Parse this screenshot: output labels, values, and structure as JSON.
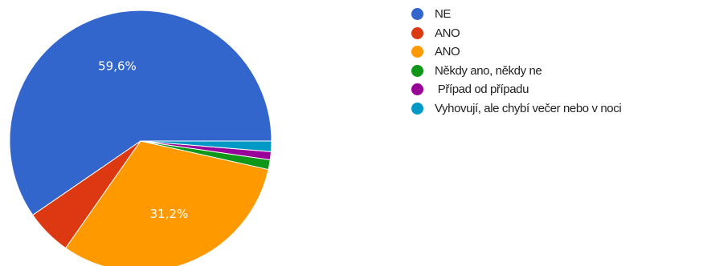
{
  "chart_data": {
    "type": "pie",
    "title": "",
    "slices": [
      {
        "label": "NE",
        "value": 59.6,
        "value_label": "59,6%",
        "color": "#3366cc"
      },
      {
        "label": "ANO",
        "value": 5.7,
        "value_label": "",
        "color": "#dc3912"
      },
      {
        "label": "ANO",
        "value": 31.2,
        "value_label": "31,2%",
        "color": "#ff9900"
      },
      {
        "label": "Někdy ano, někdy ne",
        "value": 1.2,
        "value_label": "",
        "color": "#109618"
      },
      {
        "label": " Případ od případu",
        "value": 1.0,
        "value_label": "",
        "color": "#990099"
      },
      {
        "label": "Vyhovují, ale chybí večer nebo v noci",
        "value": 1.3,
        "value_label": "",
        "color": "#0099c6"
      }
    ],
    "legend_position": "right"
  }
}
